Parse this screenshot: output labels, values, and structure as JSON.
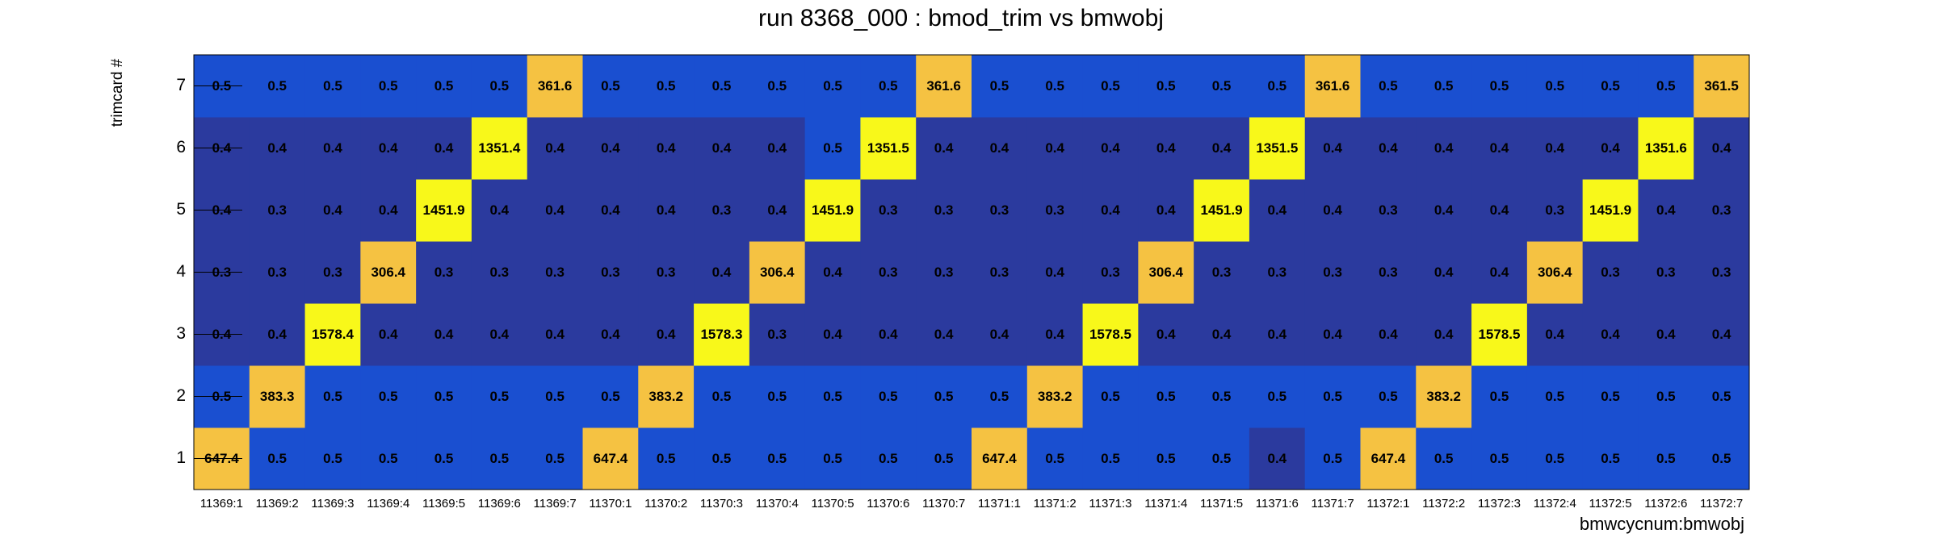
{
  "chart_data": {
    "type": "heatmap",
    "title": "run 8368_000 : bmod_trim vs bmwobj",
    "x_label": "bmwcycnum:bmwobj",
    "y_label": "trimcard #",
    "x_categories": [
      "11369:1",
      "11369:2",
      "11369:3",
      "11369:4",
      "11369:5",
      "11369:6",
      "11369:7",
      "11370:1",
      "11370:2",
      "11370:3",
      "11370:4",
      "11370:5",
      "11370:6",
      "11370:7",
      "11371:1",
      "11371:2",
      "11371:3",
      "11371:4",
      "11371:5",
      "11371:6",
      "11371:7",
      "11372:1",
      "11372:2",
      "11372:3",
      "11372:4",
      "11372:5",
      "11372:6",
      "11372:7"
    ],
    "y_categories": [
      "1",
      "2",
      "3",
      "4",
      "5",
      "6",
      "7"
    ],
    "values": [
      [
        647.4,
        0.5,
        0.5,
        0.5,
        0.5,
        0.5,
        0.5,
        647.4,
        0.5,
        0.5,
        0.5,
        0.5,
        0.5,
        0.5,
        647.4,
        0.5,
        0.5,
        0.5,
        0.5,
        0.4,
        0.5,
        647.4,
        0.5,
        0.5,
        0.5,
        0.5,
        0.5,
        0.5
      ],
      [
        0.5,
        383.3,
        0.5,
        0.5,
        0.5,
        0.5,
        0.5,
        0.5,
        383.2,
        0.5,
        0.5,
        0.5,
        0.5,
        0.5,
        0.5,
        383.2,
        0.5,
        0.5,
        0.5,
        0.5,
        0.5,
        0.5,
        383.2,
        0.5,
        0.5,
        0.5,
        0.5,
        0.5
      ],
      [
        0.4,
        0.4,
        1578.4,
        0.4,
        0.4,
        0.4,
        0.4,
        0.4,
        0.4,
        1578.3,
        0.3,
        0.4,
        0.4,
        0.4,
        0.4,
        0.4,
        1578.5,
        0.4,
        0.4,
        0.4,
        0.4,
        0.4,
        0.4,
        1578.5,
        0.4,
        0.4,
        0.4,
        0.4
      ],
      [
        0.3,
        0.3,
        0.3,
        306.4,
        0.3,
        0.3,
        0.3,
        0.3,
        0.3,
        0.4,
        306.4,
        0.4,
        0.3,
        0.3,
        0.3,
        0.4,
        0.3,
        306.4,
        0.3,
        0.3,
        0.3,
        0.3,
        0.4,
        0.4,
        306.4,
        0.3,
        0.3,
        0.3
      ],
      [
        0.4,
        0.3,
        0.4,
        0.4,
        1451.9,
        0.4,
        0.4,
        0.4,
        0.4,
        0.3,
        0.4,
        1451.9,
        0.3,
        0.3,
        0.3,
        0.3,
        0.4,
        0.4,
        1451.9,
        0.4,
        0.4,
        0.3,
        0.4,
        0.4,
        0.3,
        1451.9,
        0.4,
        0.3
      ],
      [
        0.4,
        0.4,
        0.4,
        0.4,
        0.4,
        1351.4,
        0.4,
        0.4,
        0.4,
        0.4,
        0.4,
        0.5,
        1351.5,
        0.4,
        0.4,
        0.4,
        0.4,
        0.4,
        0.4,
        1351.5,
        0.4,
        0.4,
        0.4,
        0.4,
        0.4,
        0.4,
        1351.6,
        0.4
      ],
      [
        0.5,
        0.5,
        0.5,
        0.5,
        0.5,
        0.5,
        361.6,
        0.5,
        0.5,
        0.5,
        0.5,
        0.5,
        0.5,
        361.6,
        0.5,
        0.5,
        0.5,
        0.5,
        0.5,
        0.5,
        361.6,
        0.5,
        0.5,
        0.5,
        0.5,
        0.5,
        0.5,
        361.5
      ]
    ],
    "colorscale": [
      {
        "min": 0,
        "color": "#2b3a9e"
      },
      {
        "min": 0.45,
        "color": "#1a4fd0"
      },
      {
        "min": 100,
        "color": "#f5c242"
      },
      {
        "min": 1000,
        "color": "#f8f81a"
      }
    ]
  }
}
